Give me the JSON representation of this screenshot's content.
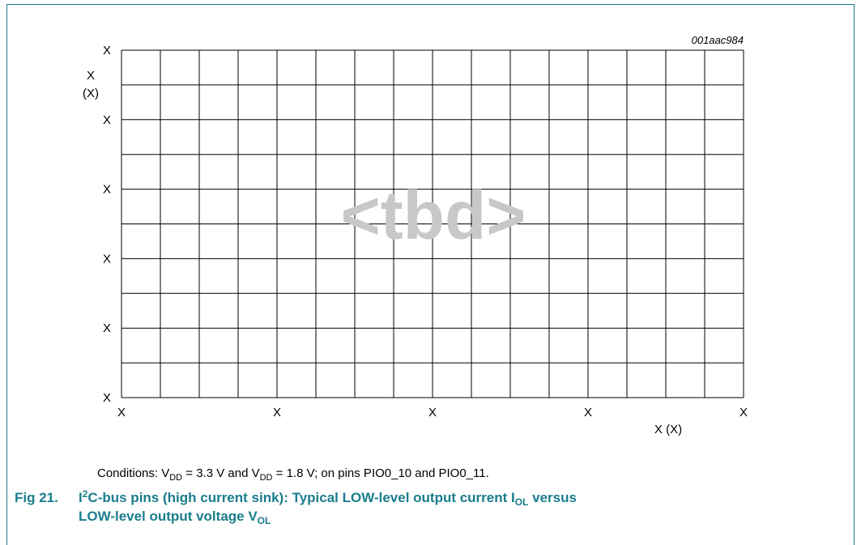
{
  "figure": {
    "id_code": "001aac984",
    "placeholder": "<tbd>",
    "y_axis": {
      "label": "X",
      "unit": "(X)",
      "tick_labels": [
        "X",
        "X",
        "X",
        "X",
        "X",
        "X"
      ]
    },
    "x_axis": {
      "label": "X (X)",
      "tick_labels": [
        "X",
        "X",
        "X",
        "X",
        "X"
      ]
    },
    "conditions": [
      "Conditions: V",
      "DD",
      " = 3.3 V and V",
      "DD",
      " = 1.8 V; on pins PIO0_10 and PIO0_11."
    ],
    "caption": {
      "number": "Fig 21.",
      "line1": [
        "I",
        "2",
        "C-bus pins (high current sink): Typical LOW-level output current I",
        "OL",
        " versus"
      ],
      "line2": [
        "LOW-level output voltage V",
        "OL"
      ]
    }
  }
}
